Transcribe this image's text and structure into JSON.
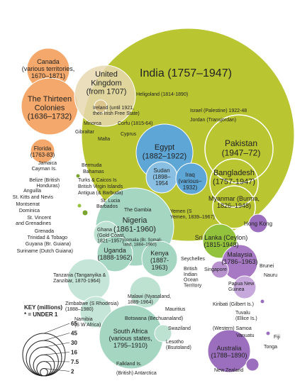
{
  "labels": {
    "canada": [
      "Canada",
      "(various territories,",
      "1670–1871)"
    ],
    "thirteen": [
      "The Thirteen",
      "Colonies",
      "(1636–1732)"
    ],
    "uk": [
      "United",
      "Kingdom",
      "(from 1707)"
    ],
    "india": [
      "India (1757–1947)"
    ],
    "heligoland": [
      "Heligoland (1814-1890)"
    ],
    "ireland": [
      "Ireland (until 1921,",
      "then Irish Free State)"
    ],
    "israel": [
      "Israel (Palestine) 1922-48"
    ],
    "jordan": [
      "Jordan (Transjordan)"
    ],
    "minorca": [
      "Minorca"
    ],
    "corfu": [
      "Corfu (1815-64)"
    ],
    "gibraltar": [
      "Gibraltar"
    ],
    "cyprus": [
      "Cyprus"
    ],
    "malta": [
      "Malta"
    ],
    "florida": [
      "Florida",
      "(1763-83)"
    ],
    "egypt": [
      "Egypt",
      "(1882–1922)"
    ],
    "pakistan": [
      "Pakistan",
      "(1947–72)"
    ],
    "bangladesh": [
      "Bangladesh",
      "(1757-1947)"
    ],
    "sudan": [
      "Sudan",
      "(1898–",
      "1954"
    ],
    "iraq": [
      "Iraq",
      "(various–",
      "1932)"
    ],
    "myanmar": [
      "Myanmar (Burma,",
      "1826–1948)"
    ],
    "jamaica": [
      "Jamaica",
      "Cayman Is."
    ],
    "bermuda": [
      "Bermuda"
    ],
    "bahamas": [
      "Bahamas"
    ],
    "belize": [
      "Belize (British",
      "Honduras)"
    ],
    "turks": [
      "Turks & Caicos Is"
    ],
    "bvi": [
      "British Virgin Islands"
    ],
    "antigua": [
      "Antigua (& Barbuda)"
    ],
    "anguilla": [
      "Anguilla"
    ],
    "stkitts": [
      "St. Kitts and Nevis"
    ],
    "montserrat": [
      "Montserrat"
    ],
    "dominica": [
      "Dominica"
    ],
    "stlucia": [
      "St. Lucia"
    ],
    "barbados": [
      "Barbados"
    ],
    "stvincent": [
      "St. Vincent",
      "and Grenadines"
    ],
    "grenada": [
      "Grenada"
    ],
    "trinidad": [
      "Trinidad & Tobago"
    ],
    "guyana": [
      "Guyana (Br. Guiana)"
    ],
    "suriname": [
      "Suriname (Dutch Guiana)"
    ],
    "gambia": [
      "The Gambia"
    ],
    "nigeria": [
      "Nigeria",
      "(1861-1960)"
    ],
    "ghana": [
      "Ghana",
      "(Gold Coast,",
      "1821–1957)"
    ],
    "yemen": [
      "Yemen (S",
      "Yemen, 1839–1967)"
    ],
    "hongkong": [
      "Hong Kong"
    ],
    "srilanka": [
      "Sri Lanka (Ceylon)",
      "(1815-1948)"
    ],
    "somalia": [
      "Somalia (Br. Somali-",
      "land, 1884–1960)"
    ],
    "malaysia": [
      "Malaysia",
      "(1786–1963)"
    ],
    "brunei": [
      "Brunei"
    ],
    "singapore": [
      "Singapore"
    ],
    "nauru": [
      "Nauru"
    ],
    "uganda": [
      "Uganda",
      "(1888-1962)"
    ],
    "kenya": [
      "Kenya",
      "(1887-",
      "1963)"
    ],
    "seychelles": [
      "Seychelles"
    ],
    "biot": [
      "British",
      "Indian",
      "Ocean",
      "Territory"
    ],
    "papua": [
      "Papua New",
      "Guinea"
    ],
    "tanzania": [
      "Tanzania (Tanganyika &",
      "Zanzibar, 1870-1964)"
    ],
    "malawi": [
      "Malawi (Nyasaland,",
      "1889-1964)"
    ],
    "mauritius": [
      "Mauritius"
    ],
    "kiribati": [
      "Kiribati (Gilbert Is.)"
    ],
    "tuvalu": [
      "Tuvalu",
      "(Ellice Is.)"
    ],
    "zimbabwe": [
      "Zimbabwe (S Rhodesia)",
      "(1888–1980)"
    ],
    "namibia": [
      "Namibia",
      "(S W Africa)"
    ],
    "botswana": [
      "Botswana (Bechuanaland)"
    ],
    "samoa": [
      "(Western) Samoa"
    ],
    "vanuatu": [
      "Vanuatu"
    ],
    "fiji": [
      "Fiji"
    ],
    "swaziland": [
      "Swaziland"
    ],
    "southafrica": [
      "South Africa",
      "(various states,",
      "1795–1910)"
    ],
    "tonga": [
      "Tonga"
    ],
    "lesotho": [
      "Lesotho",
      "(Bsutoland)"
    ],
    "australia": [
      "Australia",
      "(1788–1890)"
    ],
    "newzealand": [
      "New Zealand"
    ],
    "falkland": [
      "Falkland Is."
    ],
    "antarctica": [
      "(British) Antarctica"
    ]
  },
  "key": {
    "title": "KEY (millions)",
    "note": "* = UNDER 1",
    "values": [
      65,
      45,
      30,
      16,
      7.5,
      2
    ]
  }
}
